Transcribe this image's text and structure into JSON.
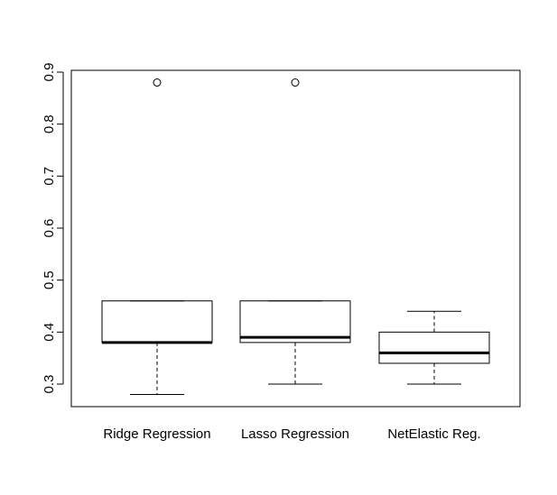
{
  "chart_data": {
    "type": "boxplot",
    "title": "",
    "xlabel": "",
    "ylabel": "",
    "ylim": [
      0.255,
      0.9
    ],
    "y_ticks": [
      "0.3",
      "0.4",
      "0.5",
      "0.6",
      "0.7",
      "0.8",
      "0.9"
    ],
    "grid": false,
    "categories": [
      "Ridge Regression",
      "Lasso Regression",
      "NetElastic Reg."
    ],
    "boxes": [
      {
        "category": "Ridge Regression",
        "whisker_low": 0.28,
        "q1": 0.38,
        "median": 0.38,
        "q3": 0.46,
        "whisker_high": 0.46,
        "outliers": [
          0.88
        ]
      },
      {
        "category": "Lasso Regression",
        "whisker_low": 0.3,
        "q1": 0.38,
        "median": 0.39,
        "q3": 0.46,
        "whisker_high": 0.46,
        "outliers": [
          0.88
        ]
      },
      {
        "category": "NetElastic Reg.",
        "whisker_low": 0.3,
        "q1": 0.34,
        "median": 0.36,
        "q3": 0.4,
        "whisker_high": 0.44,
        "outliers": []
      }
    ]
  }
}
